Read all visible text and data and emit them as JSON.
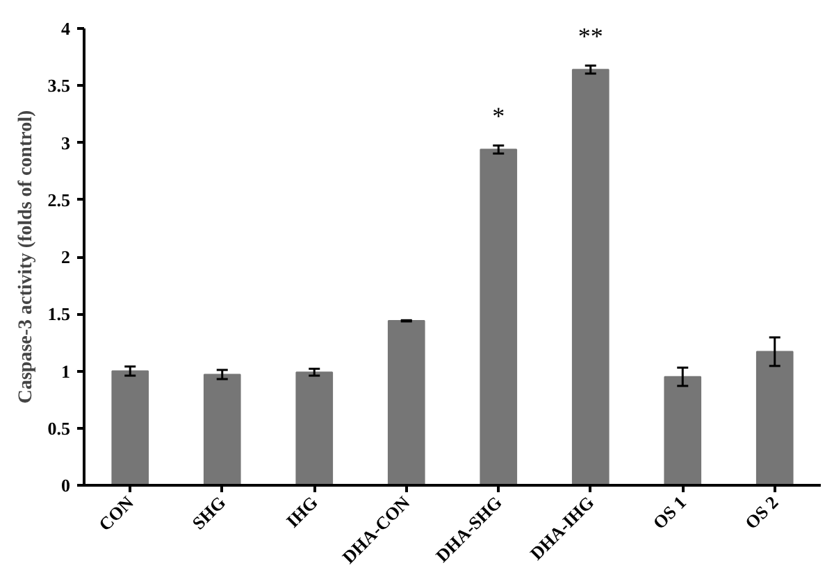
{
  "chart_data": {
    "type": "bar",
    "ylabel": "Caspase-3 activity (folds of control)",
    "categories": [
      "CON",
      "SHG",
      "IHG",
      "DHA-CON",
      "DHA-SHG",
      "DHA-IHG",
      "OS 1",
      "OS 2"
    ],
    "values": [
      1.0,
      0.97,
      0.99,
      1.44,
      2.94,
      3.64,
      0.95,
      1.17
    ],
    "errors": [
      0.04,
      0.04,
      0.03,
      0.005,
      0.035,
      0.035,
      0.08,
      0.125
    ],
    "color": "#767676",
    "ylim": [
      0,
      4
    ],
    "yticks": [
      0,
      0.5,
      1,
      1.5,
      2,
      2.5,
      3,
      3.5,
      4
    ],
    "grid": false,
    "annotations": [
      {
        "text": "*",
        "x": "DHA-SHG",
        "y": 2.94
      },
      {
        "text": "**",
        "x": "DHA-IHG",
        "y": 3.64
      }
    ]
  }
}
